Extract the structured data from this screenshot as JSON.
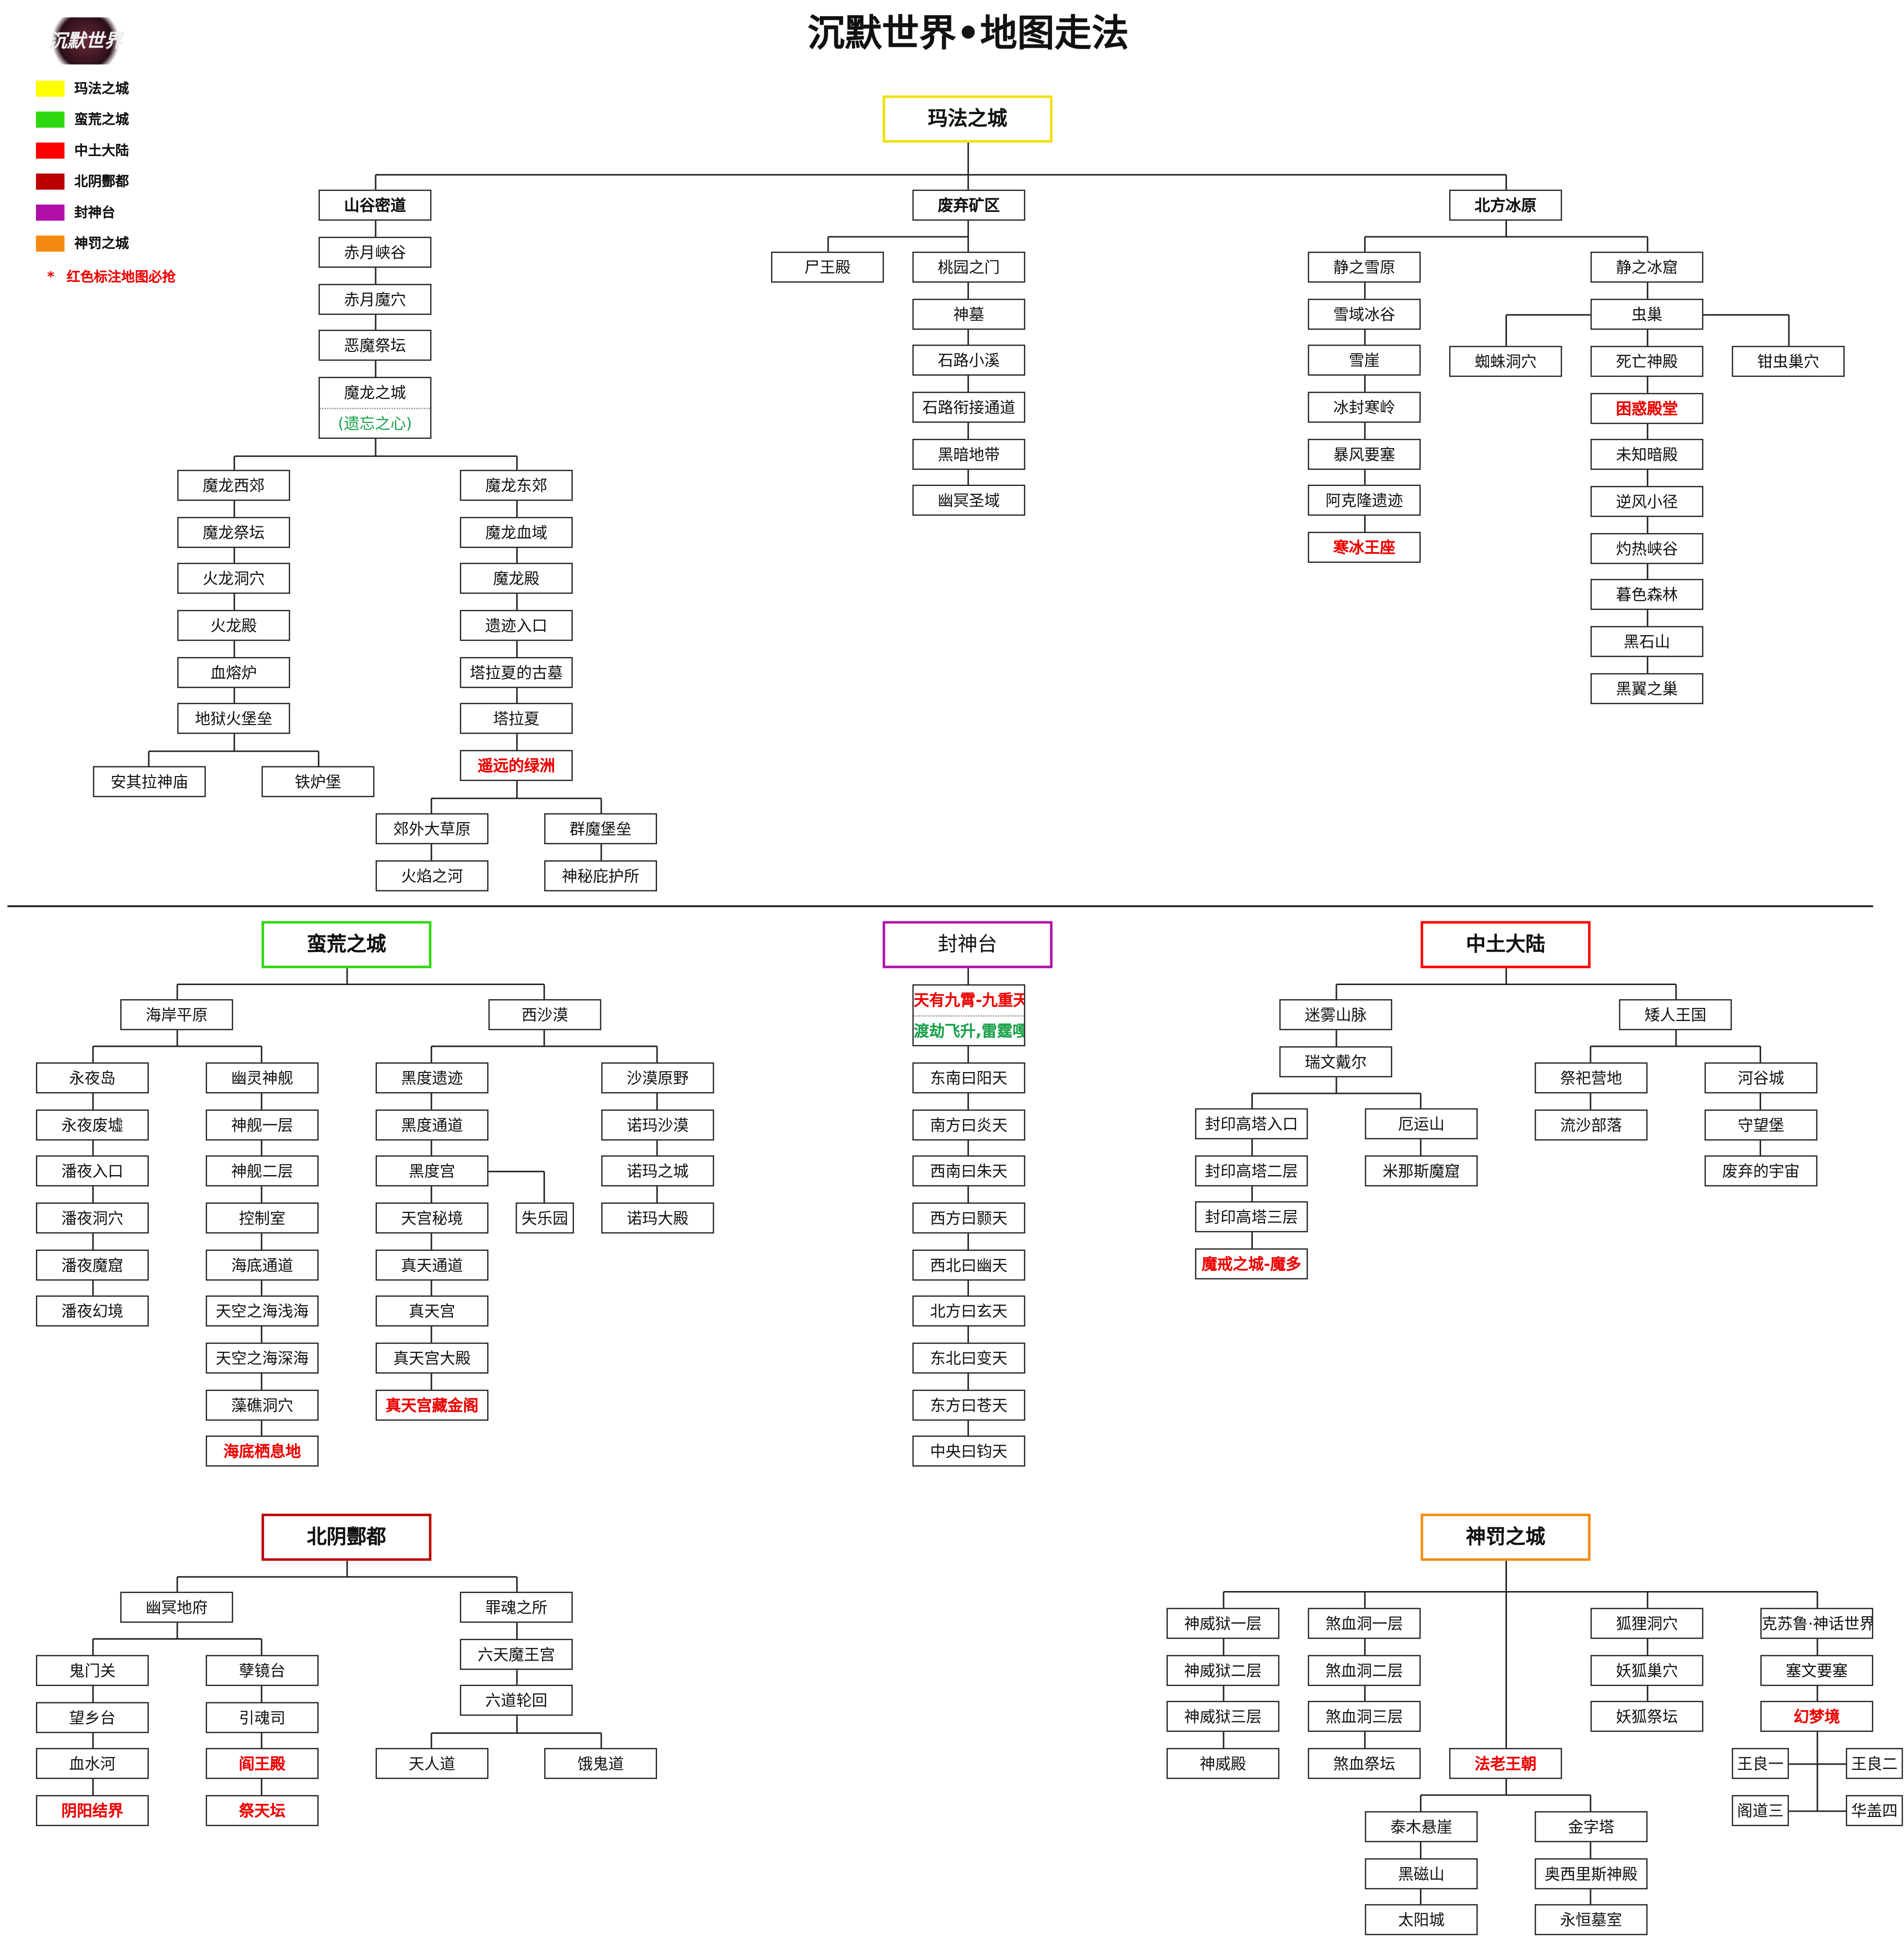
{
  "title": "沉默世界•地图走法",
  "logo_text": "沉默世界",
  "legend": [
    {
      "label": "玛法之城",
      "color": "#ffff00"
    },
    {
      "label": "蛮荒之城",
      "color": "#2ed70e"
    },
    {
      "label": "中土大陆",
      "color": "#ff0000"
    },
    {
      "label": "北阴酆都",
      "color": "#bb0000"
    },
    {
      "label": "封神台",
      "color": "#b010a8"
    },
    {
      "label": "神罚之城",
      "color": "#f48a10"
    }
  ],
  "note": {
    "star": "*",
    "text": "红色标注地图必抢"
  },
  "headers": {
    "mafa": {
      "t": "玛法之城",
      "color": "#f0e000"
    },
    "manhuang": {
      "t": "蛮荒之城",
      "color": "#2ed70e"
    },
    "fengshen": {
      "t": "封神台",
      "color": "#b010a8"
    },
    "zhongtu": {
      "t": "中土大陆",
      "color": "#ff0000"
    },
    "beiyin": {
      "t": "北阴酆都",
      "color": "#bb0000"
    },
    "shenfa": {
      "t": "神罚之城",
      "color": "#f48a10"
    }
  },
  "maps": {
    "hubs_mafa": [
      "山谷密道",
      "废弃矿区",
      "北方冰原"
    ],
    "shangu": [
      "赤月峡谷",
      "赤月魔穴",
      "恶魔祭坛"
    ],
    "molong_city": [
      {
        "t": "魔龙之城",
        "sub": "(遗忘之心)"
      }
    ],
    "molong_west": [
      "魔龙西郊",
      "魔龙祭坛",
      "火龙洞穴",
      "火龙殿",
      "血熔炉",
      "地狱火堡垒"
    ],
    "molong_west_end": [
      "安其拉神庙",
      "铁炉堡"
    ],
    "molong_east": [
      "魔龙东郊",
      "魔龙血域",
      "魔龙殿",
      "遗迹入口",
      "塔拉夏的古墓",
      "塔拉夏",
      {
        "t": "遥远的绿洲",
        "red": true
      }
    ],
    "molong_east_a": [
      "郊外大草原",
      "火焰之河"
    ],
    "molong_east_b": [
      "群魔堡垒",
      "神秘庇护所"
    ],
    "feiqi_side": [
      "尸王殿"
    ],
    "feiqi": [
      "桃园之门",
      "神墓",
      "石路小溪",
      "石路衔接通道",
      "黑暗地带",
      "幽冥圣域"
    ],
    "bingyuan_l": [
      "静之雪原",
      "雪域冰谷",
      "雪崖",
      "冰封寒岭",
      "暴风要塞",
      "阿克隆遗迹",
      {
        "t": "寒冰王座",
        "red": true
      }
    ],
    "bingyuan_r1": [
      "静之冰窟",
      "虫巢"
    ],
    "chongchao_side": [
      "蜘蛛洞穴",
      "钳虫巢穴"
    ],
    "bingyuan_r2": [
      "死亡神殿",
      {
        "t": "困惑殿堂",
        "red": true
      },
      "未知暗殿",
      "逆风小径",
      "灼热峡谷",
      "暮色森林",
      "黑石山",
      "黑翼之巢"
    ],
    "manhuang_hubs": [
      "海岸平原",
      "西沙漠"
    ],
    "haian_l": [
      "永夜岛",
      "永夜废墟",
      "潘夜入口",
      "潘夜洞穴",
      "潘夜魔窟",
      "潘夜幻境"
    ],
    "haian_r": [
      "幽灵神舰",
      "神舰一层",
      "神舰二层",
      "控制室",
      "海底通道",
      "天空之海浅海",
      "天空之海深海",
      "藻礁洞穴",
      {
        "t": "海底栖息地",
        "red": true
      }
    ],
    "xisha_l": [
      "黑度遗迹",
      "黑度通道",
      "黑度宫",
      "天宫秘境",
      "真天通道",
      "真天宫",
      "真天宫大殿",
      {
        "t": "真天宫藏金阁",
        "red": true
      }
    ],
    "xisha_side": [
      "失乐园"
    ],
    "xisha_r": [
      "沙漠原野",
      "诺玛沙漠",
      "诺玛之城",
      "诺玛大殿"
    ],
    "fengshen_top": [
      {
        "t": "天有九霄-九重天",
        "sub": "渡劫飞升,雷霆嘎日",
        "red": true
      }
    ],
    "fengshen": [
      "东南曰阳天",
      "南方曰炎天",
      "西南曰朱天",
      "西方曰颢天",
      "西北曰幽天",
      "北方曰玄天",
      "东北曰变天",
      "东方曰苍天",
      "中央曰钧天"
    ],
    "miwu": [
      "迷雾山脉",
      "瑞文戴尔"
    ],
    "fengyin": [
      "封印高塔入口",
      "封印高塔二层",
      "封印高塔三层",
      {
        "t": "魔戒之城-魔多",
        "red": true
      }
    ],
    "eyun": [
      "厄运山",
      "米那斯魔窟"
    ],
    "airen": [
      "矮人王国"
    ],
    "jisi": [
      "祭祀营地",
      "流沙部落"
    ],
    "hegu": [
      "河谷城",
      "守望堡",
      "废弃的宇宙"
    ],
    "youming": [
      "幽冥地府"
    ],
    "guimen": [
      "鬼门关",
      "望乡台",
      "血水河",
      {
        "t": "阴阳结界",
        "red": true
      }
    ],
    "niejing": [
      "孽镜台",
      "引魂司",
      {
        "t": "阎王殿",
        "red": true
      },
      {
        "t": "祭天坛",
        "red": true
      }
    ],
    "zuihun": [
      "罪魂之所",
      "六天魔王宫",
      "六道轮回"
    ],
    "dao": [
      "天人道",
      "饿鬼道"
    ],
    "shenwei": [
      "神威狱一层",
      "神威狱二层",
      "神威狱三层",
      "神威殿"
    ],
    "shaxue": [
      "煞血洞一层",
      "煞血洞二层",
      "煞血洞三层",
      "煞血祭坛"
    ],
    "falao": [
      {
        "t": "法老王朝",
        "red": true
      }
    ],
    "huli": [
      "狐狸洞穴",
      "妖狐巢穴",
      "妖狐祭坛"
    ],
    "kesulu": [
      "克苏鲁·神话世界",
      "塞文要塞",
      {
        "t": "幻梦境",
        "red": true
      }
    ],
    "wangliang1": [
      "王良一",
      "王良二"
    ],
    "wangliang2": [
      "阁道三",
      "华盖四"
    ],
    "falao_l": [
      "泰木悬崖",
      "黑磁山",
      "太阳城"
    ],
    "falao_r": [
      "金字塔",
      "奥西里斯神殿",
      "永恒墓室"
    ]
  }
}
